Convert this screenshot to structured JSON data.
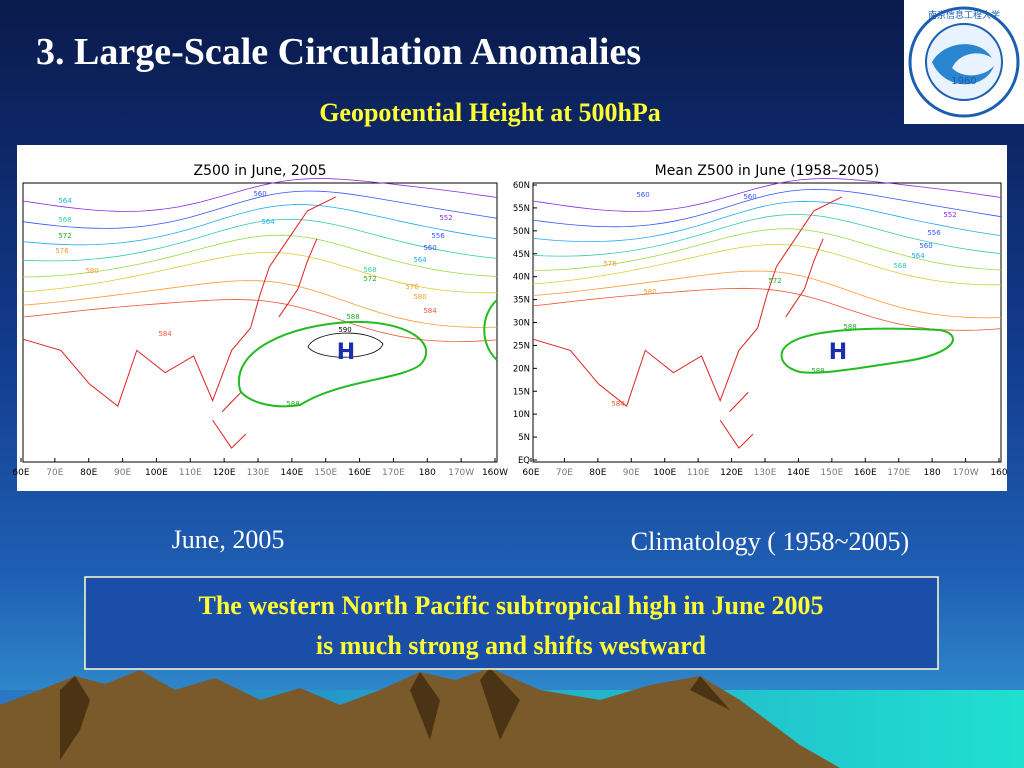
{
  "header": {
    "title": "3. Large-Scale Circulation Anomalies",
    "subtitle": "Geopotential Height at 500hPa"
  },
  "logo": {
    "name": "南京信息工程大学",
    "year": "1960"
  },
  "panels": [
    {
      "title": "Z500 in June, 2005",
      "x_labels": [
        "60E",
        "70E",
        "80E",
        "90E",
        "100E",
        "110E",
        "120E",
        "130E",
        "140E",
        "150E",
        "160E",
        "170E",
        "180",
        "170W",
        "160W"
      ],
      "contour_labels": [
        "564",
        "568",
        "572",
        "576",
        "580",
        "584",
        "560",
        "564",
        "552",
        "556",
        "560",
        "564",
        "568",
        "572",
        "576",
        "580",
        "584",
        "588",
        "588",
        "590"
      ],
      "high_label": "H",
      "caption": "June, 2005"
    },
    {
      "title": "Mean Z500 in June (1958–2005)",
      "x_labels": [
        "60E",
        "70E",
        "80E",
        "90E",
        "100E",
        "110E",
        "120E",
        "130E",
        "140E",
        "150E",
        "160E",
        "170E",
        "180",
        "170W",
        "160"
      ],
      "y_labels": [
        "60N",
        "55N",
        "50N",
        "45N",
        "40N",
        "35N",
        "30N",
        "25N",
        "20N",
        "15N",
        "10N",
        "5N",
        "EQ"
      ],
      "contour_labels": [
        "560",
        "560",
        "552",
        "556",
        "560",
        "564",
        "568",
        "576",
        "572",
        "580",
        "584",
        "588",
        "588"
      ],
      "high_label": "H",
      "caption": "Climatology ( 1958~2005)"
    }
  ],
  "conclusion": [
    "The western  North Pacific subtropical high in June 2005",
    "is much strong and shifts westward"
  ]
}
